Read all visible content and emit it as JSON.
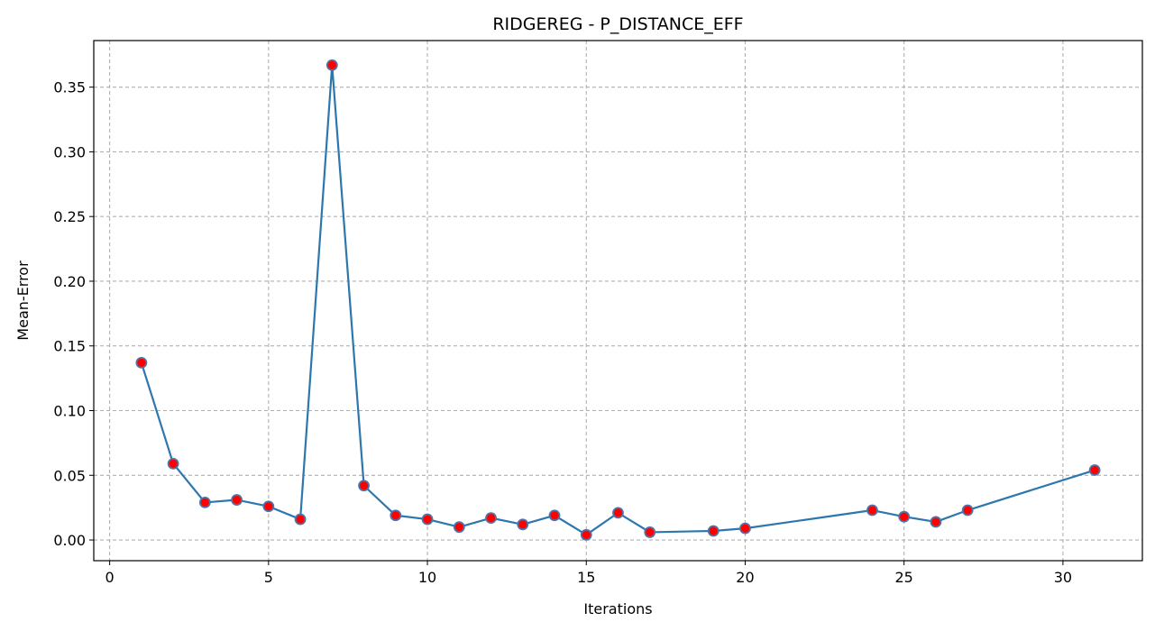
{
  "chart_data": {
    "type": "line",
    "title": "RIDGEREG - P_DISTANCE_EFF",
    "xlabel": "Iterations",
    "ylabel": "Mean-Error",
    "xlim": [
      -0.5,
      32.5
    ],
    "ylim": [
      -0.016,
      0.386
    ],
    "x_ticks": [
      0,
      5,
      10,
      15,
      20,
      25,
      30
    ],
    "y_ticks": [
      0.0,
      0.05,
      0.1,
      0.15,
      0.2,
      0.25,
      0.3,
      0.35
    ],
    "y_tick_labels": [
      "0.00",
      "0.05",
      "0.10",
      "0.15",
      "0.20",
      "0.25",
      "0.30",
      "0.35"
    ],
    "x_tick_labels": [
      "0",
      "5",
      "10",
      "15",
      "20",
      "25",
      "30"
    ],
    "grid": true,
    "grid_style": "dashed",
    "line_color": "#2d77ad",
    "marker_face_color": "#ff0000",
    "marker_edge_color": "#4f74a8",
    "series": [
      {
        "x": [
          1,
          2,
          3,
          4,
          5,
          6,
          7,
          8,
          9,
          10,
          11,
          12,
          13,
          14,
          15,
          16,
          17,
          19,
          20,
          24,
          25,
          26,
          27,
          31
        ],
        "values": [
          0.137,
          0.059,
          0.029,
          0.031,
          0.026,
          0.016,
          0.367,
          0.042,
          0.019,
          0.016,
          0.01,
          0.017,
          0.012,
          0.019,
          0.004,
          0.021,
          0.006,
          0.007,
          0.009,
          0.023,
          0.018,
          0.014,
          0.023,
          0.054
        ]
      }
    ]
  }
}
